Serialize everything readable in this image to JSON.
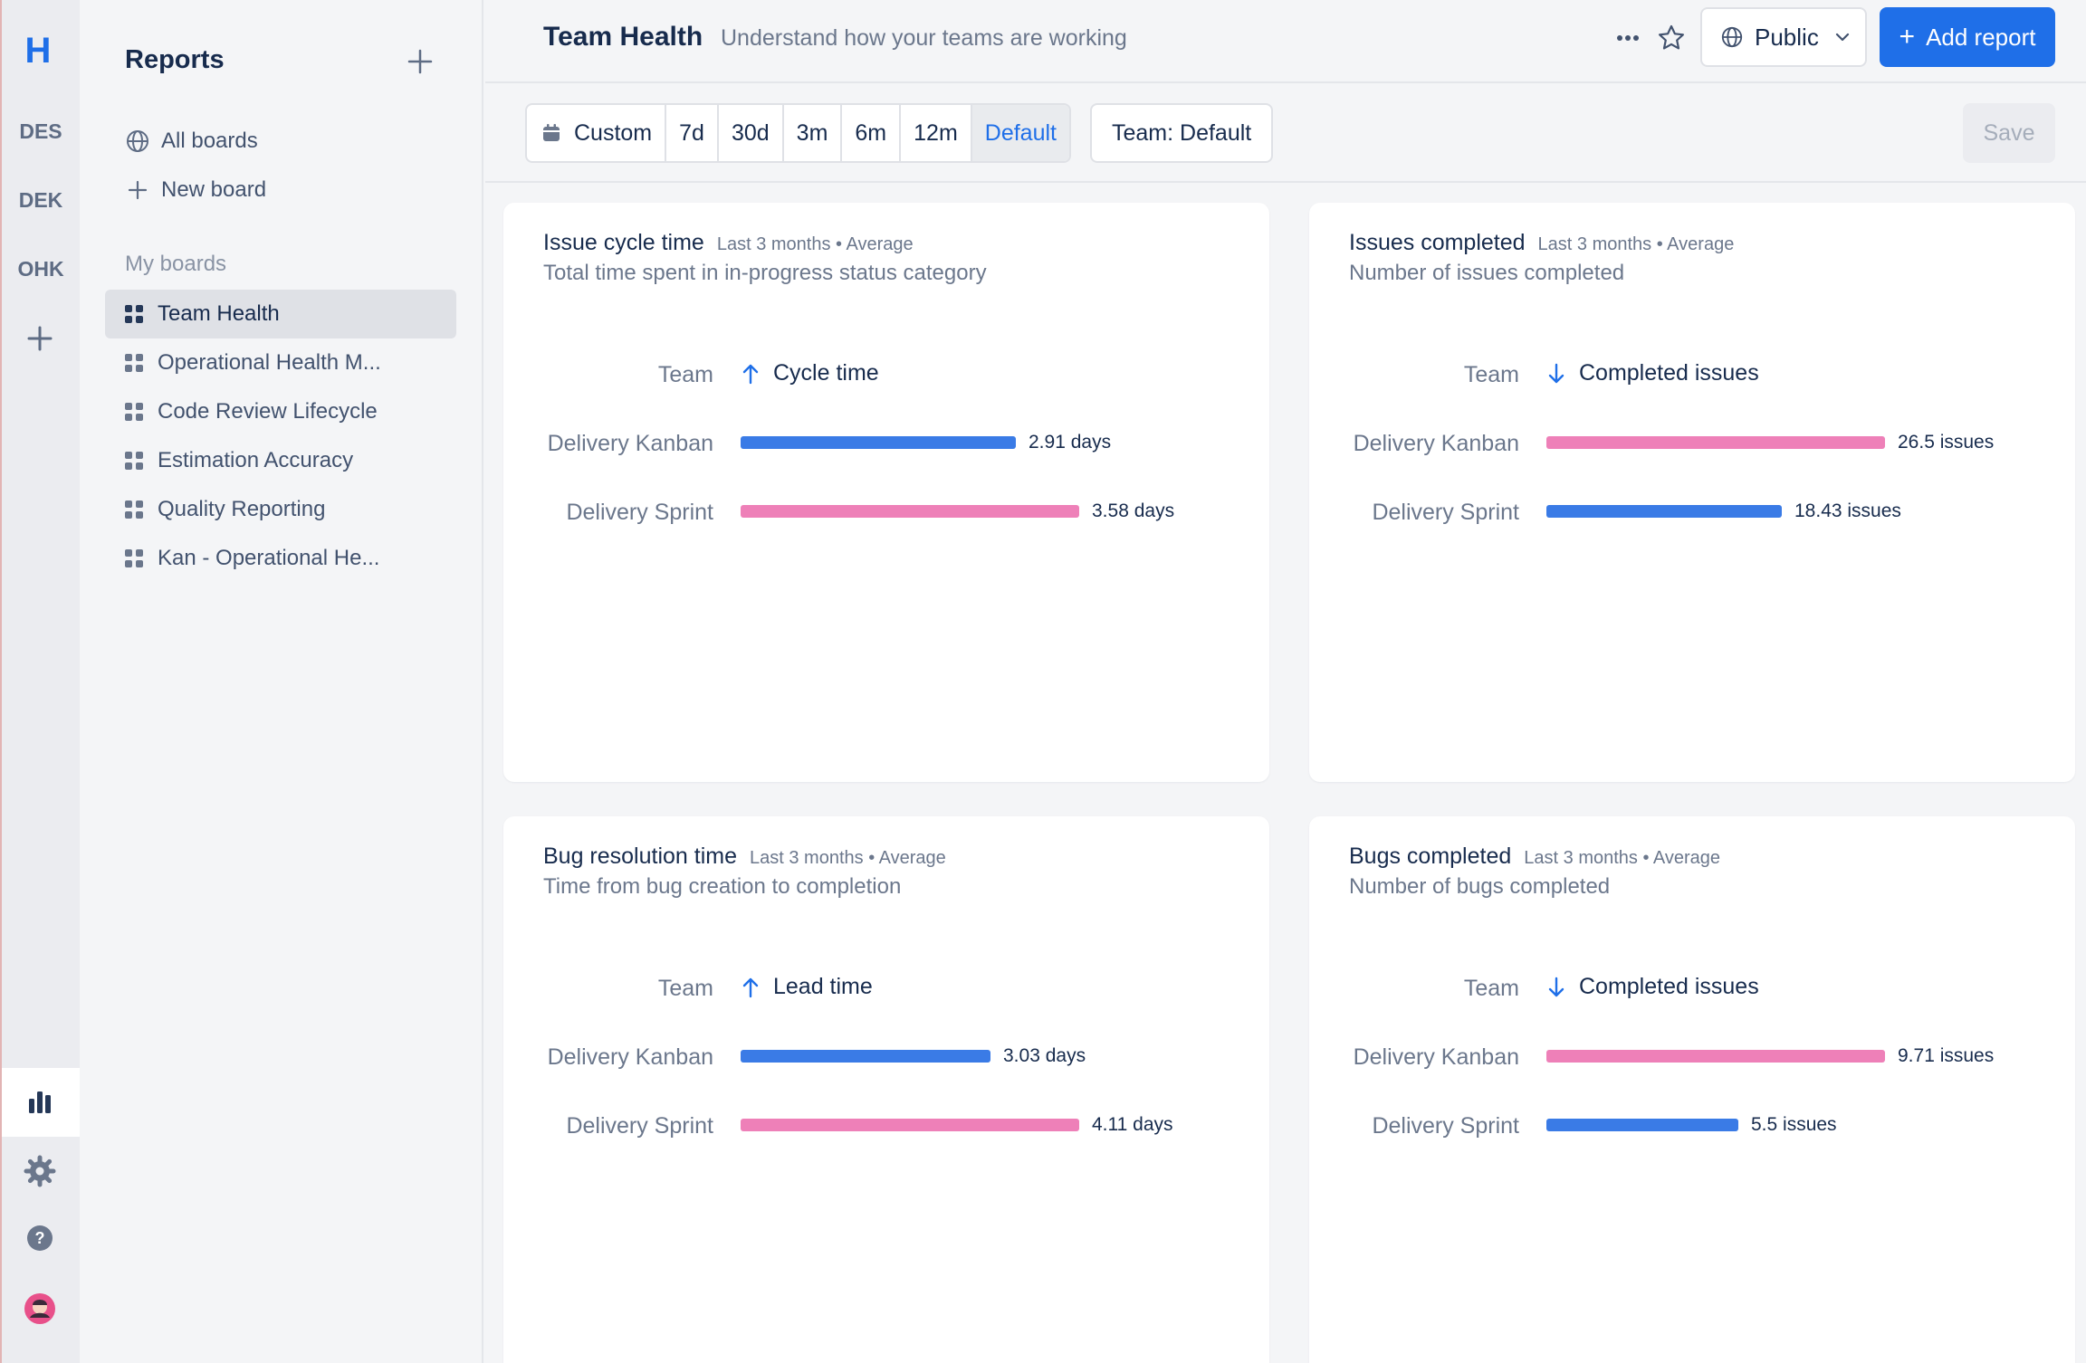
{
  "colors": {
    "accent": "#1f6fe8",
    "bar_blue": "#3a7be6",
    "bar_pink": "#ee80b8"
  },
  "rail": {
    "logo": "H",
    "projects": [
      "DES",
      "DEK",
      "OHK"
    ]
  },
  "sidebar": {
    "title": "Reports",
    "links": [
      {
        "label": "All boards",
        "icon": "globe-icon"
      },
      {
        "label": "New board",
        "icon": "plus-icon"
      }
    ],
    "section_label": "My boards",
    "boards": [
      {
        "label": "Team Health",
        "active": true
      },
      {
        "label": "Operational Health M...",
        "active": false
      },
      {
        "label": "Code Review Lifecycle",
        "active": false
      },
      {
        "label": "Estimation Accuracy",
        "active": false
      },
      {
        "label": "Quality Reporting",
        "active": false
      },
      {
        "label": "Kan - Operational He...",
        "active": false
      }
    ]
  },
  "header": {
    "title": "Team Health",
    "subtitle": "Understand how your teams are working",
    "visibility_label": "Public",
    "add_report_label": "Add report"
  },
  "toolbar": {
    "ranges": [
      "Custom",
      "7d",
      "30d",
      "3m",
      "6m",
      "12m",
      "Default"
    ],
    "selected_range": "Default",
    "team_filter_label": "Team: Default",
    "save_label": "Save"
  },
  "cards": [
    {
      "title": "Issue cycle time",
      "meta": "Last 3 months • Average",
      "description": "Total time spent in in-progress status category",
      "team_header": "Team",
      "metric_header": "Cycle time",
      "sort": "up",
      "chart_data": {
        "type": "bar",
        "categories": [
          "Delivery Kanban",
          "Delivery Sprint"
        ],
        "values": [
          2.91,
          3.58
        ],
        "value_labels": [
          "2.91 days",
          "3.58 days"
        ],
        "bar_colors": [
          "blue",
          "pink"
        ]
      }
    },
    {
      "title": "Issues completed",
      "meta": "Last 3 months • Average",
      "description": "Number of issues completed",
      "team_header": "Team",
      "metric_header": "Completed issues",
      "sort": "down",
      "chart_data": {
        "type": "bar",
        "categories": [
          "Delivery Kanban",
          "Delivery Sprint"
        ],
        "values": [
          26.5,
          18.43
        ],
        "value_labels": [
          "26.5 issues",
          "18.43 issues"
        ],
        "bar_colors": [
          "pink",
          "blue"
        ]
      }
    },
    {
      "title": "Bug resolution time",
      "meta": "Last 3 months • Average",
      "description": "Time from bug creation to completion",
      "team_header": "Team",
      "metric_header": "Lead time",
      "sort": "up",
      "chart_data": {
        "type": "bar",
        "categories": [
          "Delivery Kanban",
          "Delivery Sprint"
        ],
        "values": [
          3.03,
          4.11
        ],
        "value_labels": [
          "3.03 days",
          "4.11 days"
        ],
        "bar_colors": [
          "blue",
          "pink"
        ]
      }
    },
    {
      "title": "Bugs completed",
      "meta": "Last 3 months • Average",
      "description": "Number of bugs completed",
      "team_header": "Team",
      "metric_header": "Completed issues",
      "sort": "down",
      "chart_data": {
        "type": "bar",
        "categories": [
          "Delivery Kanban",
          "Delivery Sprint"
        ],
        "values": [
          9.71,
          5.5
        ],
        "value_labels": [
          "9.71 issues",
          "5.5 issues"
        ],
        "bar_colors": [
          "pink",
          "blue"
        ]
      }
    }
  ]
}
